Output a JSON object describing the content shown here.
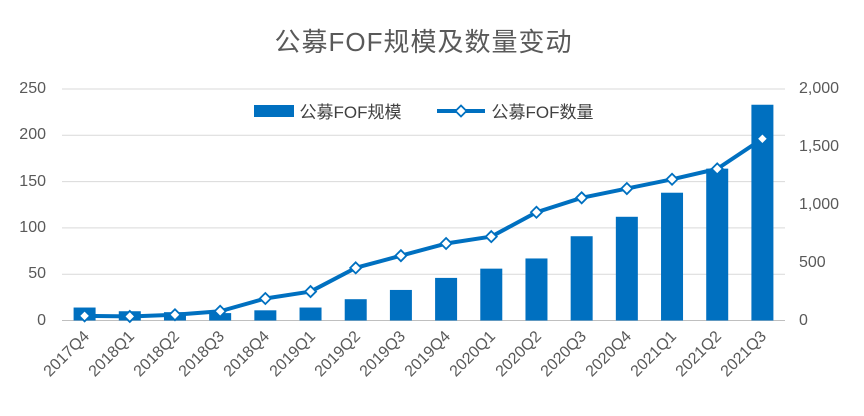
{
  "title": "公募FOF规模及数量变动",
  "legend": {
    "bar_label": "公募FOF规模",
    "line_label": "公募FOF数量"
  },
  "colors": {
    "series": "#0070C0",
    "grid": "#D9D9D9",
    "axis_line": "#BFBFBF",
    "axis_text": "#595959",
    "title_text": "#595959",
    "legend_text": "#404040",
    "marker_fill": "#FFFFFF"
  },
  "axes": {
    "left_ticks": [
      "250",
      "200",
      "150",
      "100",
      "50",
      "0"
    ],
    "right_ticks": [
      "2,000",
      "1,500",
      "1,000",
      "500",
      "0"
    ]
  },
  "chart_data": {
    "type": "bar",
    "subtype": "combo bar+line, dual axis",
    "title": "公募FOF规模及数量变动",
    "categories": [
      "2017Q4",
      "2018Q1",
      "2018Q2",
      "2018Q3",
      "2018Q4",
      "2019Q1",
      "2019Q2",
      "2019Q3",
      "2019Q4",
      "2020Q1",
      "2020Q2",
      "2020Q3",
      "2020Q4",
      "2021Q1",
      "2021Q2",
      "2021Q3"
    ],
    "series": [
      {
        "name": "公募FOF规模",
        "type": "bar",
        "axis": "left",
        "values": [
          14,
          10,
          9,
          8,
          11,
          14,
          23,
          33,
          46,
          56,
          67,
          91,
          112,
          138,
          164,
          233
        ]
      },
      {
        "name": "公募FOF数量",
        "type": "line",
        "axis": "right",
        "values": [
          40,
          35,
          50,
          80,
          190,
          250,
          455,
          560,
          665,
          725,
          935,
          1060,
          1140,
          1220,
          1310,
          1570
        ]
      }
    ],
    "left_ylim": [
      0,
      250
    ],
    "right_ylim": [
      0,
      2000
    ],
    "xlabel": "",
    "ylabel_left": "",
    "ylabel_right": "",
    "grid": true,
    "legend_position": "top"
  }
}
